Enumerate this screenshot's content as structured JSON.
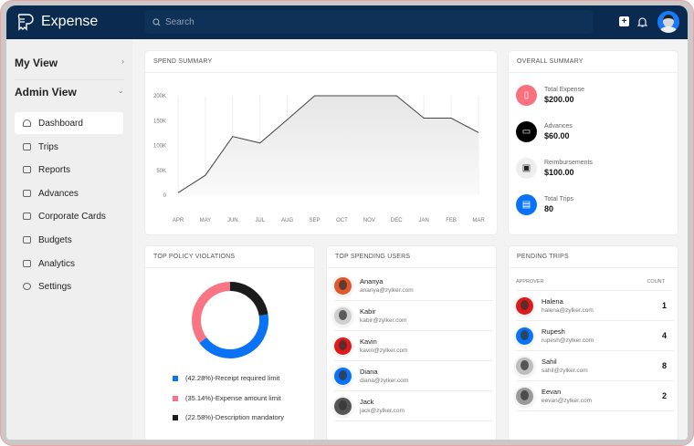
{
  "header": {
    "app_name": "Expense",
    "search_placeholder": "Search"
  },
  "sidebar": {
    "my_view": "My View",
    "admin_view": "Admin View",
    "items": [
      {
        "label": "Dashboard",
        "active": true
      },
      {
        "label": "Trips"
      },
      {
        "label": "Reports"
      },
      {
        "label": "Advances"
      },
      {
        "label": "Corporate Cards"
      },
      {
        "label": "Budgets"
      },
      {
        "label": "Analytics"
      },
      {
        "label": "Settings"
      }
    ]
  },
  "spend_summary": {
    "title": "SPEND SUMMARY"
  },
  "overall_summary": {
    "title": "OVERALL SUMMARY",
    "items": [
      {
        "label": "Total Expense",
        "value": "$200.00",
        "color": "#f9707f",
        "icon": "receipt-icon"
      },
      {
        "label": "Advances",
        "value": "$60.00",
        "color": "#000000",
        "icon": "wallet-icon"
      },
      {
        "label": "Reimbursements",
        "value": "$100.00",
        "color": "#eeeeee",
        "icon": "cash-icon"
      },
      {
        "label": "Total Trips",
        "value": "80",
        "color": "#0a73f5",
        "icon": "briefcase-icon"
      }
    ]
  },
  "policy": {
    "title": "TOP POLICY VIOLATIONS",
    "legend": [
      {
        "label": "(42.28%)-Receipt required limit",
        "color": "#0a73f5"
      },
      {
        "label": "(35.14%)-Expense amount limit",
        "color": "#f97583"
      },
      {
        "label": "(22.58%)-Description mandatory",
        "color": "#1c1c1c"
      }
    ]
  },
  "top_users": {
    "title": "TOP SPENDING USERS",
    "users": [
      {
        "name": "Ananya",
        "email": "ananya@zylker.com",
        "color": "#e2572c"
      },
      {
        "name": "Kabir",
        "email": "kabir@zylker.com",
        "color": "#cfcfcf"
      },
      {
        "name": "Kavin",
        "email": "kavin@zylker.com",
        "color": "#e01919"
      },
      {
        "name": "Diana",
        "email": "diana@zylker.com",
        "color": "#0a73f5"
      },
      {
        "name": "Jack",
        "email": "jack@zylker.com",
        "color": "#555555"
      }
    ]
  },
  "pending_trips": {
    "title": "PENDING TRIPS",
    "col_approver": "APPROVER",
    "col_count": "COUNT",
    "rows": [
      {
        "name": "Halena",
        "email": "halena@zylker.com",
        "count": "1",
        "color": "#e01919"
      },
      {
        "name": "Rupesh",
        "email": "rupesh@zylker.com",
        "count": "4",
        "color": "#0a73f5"
      },
      {
        "name": "Sahil",
        "email": "sahil@zylker.com",
        "count": "8",
        "color": "#bdbdbd"
      },
      {
        "name": "Eevan",
        "email": "eevan@zylker.com",
        "count": "2",
        "color": "#9a9a9a"
      }
    ]
  },
  "chart_data": [
    {
      "type": "area",
      "title": "SPEND SUMMARY",
      "categories": [
        "APR",
        "MAY",
        "JUN",
        "JUL",
        "AUG",
        "SEP",
        "OCT",
        "NOV",
        "DEC",
        "JAN",
        "FEB",
        "MAR"
      ],
      "values": [
        5000,
        40000,
        118000,
        105000,
        152000,
        200000,
        200000,
        200000,
        200000,
        155000,
        155000,
        126000
      ],
      "yticks": [
        "0",
        "50K",
        "100K",
        "150K",
        "200K"
      ],
      "ylim": [
        0,
        200000
      ],
      "grid": "vertical",
      "color": "#444444"
    },
    {
      "type": "pie",
      "style": "donut",
      "categories": [
        "Description mandatory",
        "Receipt required limit",
        "Expense amount limit"
      ],
      "values": [
        22.58,
        42.28,
        35.14
      ],
      "colors": [
        "#1c1c1c",
        "#0a73f5",
        "#f97583"
      ]
    }
  ]
}
